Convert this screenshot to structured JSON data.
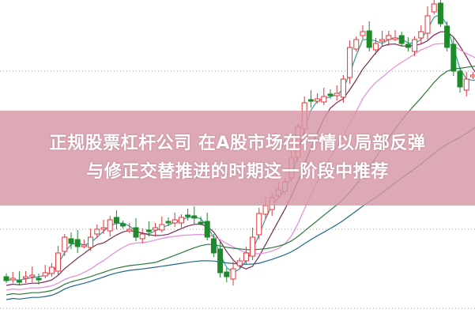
{
  "headline": {
    "line1": "正规股票杠杆公司 在A股市场在行情以局部反弹",
    "line2": "与修正交替推进的时期这一阶段中推荐"
  },
  "colors": {
    "up_candle": "#e0343c",
    "down_candle": "#1f8a2a",
    "banner": "#d696a5",
    "ma_lines": [
      "#3a9a9a",
      "#7a2a5a",
      "#e58ad8",
      "#2c7a3a",
      "#1f6a8a"
    ]
  }
}
